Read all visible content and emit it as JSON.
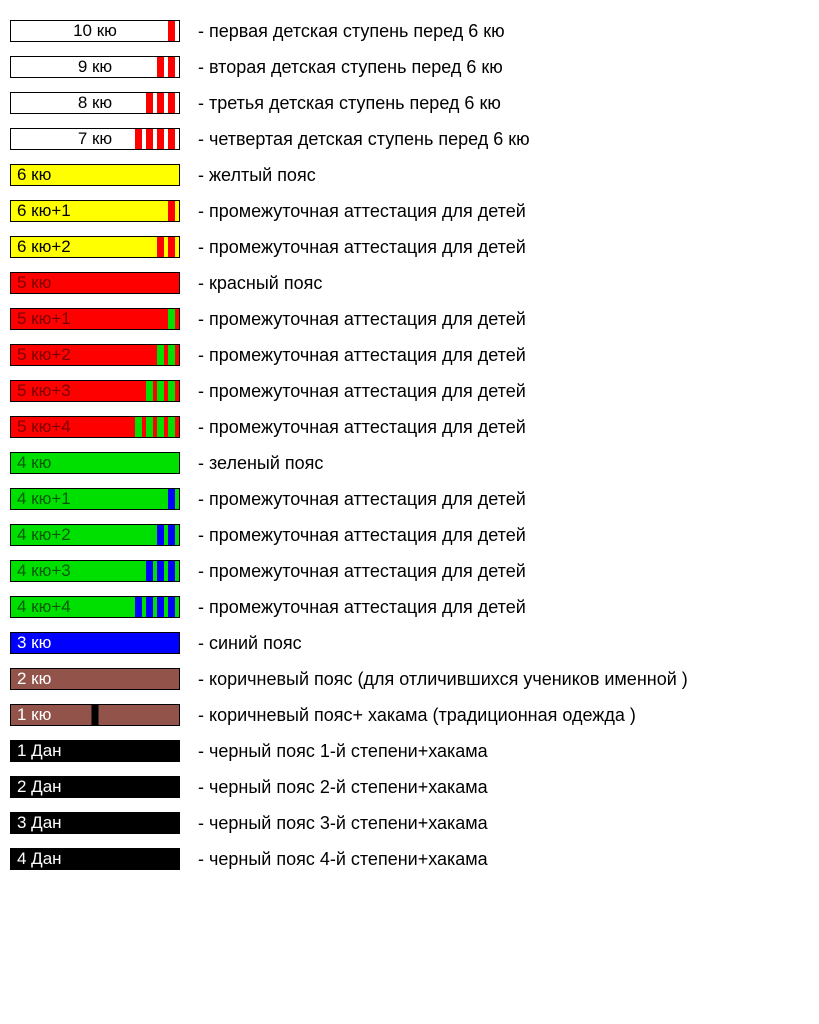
{
  "colors": {
    "white": "#ffffff",
    "yellow": "#ffff00",
    "red": "#ff0000",
    "green": "#00e000",
    "blue": "#0000ff",
    "brown": "#92544a",
    "black": "#000000",
    "darkred_text": "#7a0000",
    "darkgreen_text": "#045a04",
    "white_text": "#ffffff",
    "black_text": "#000000"
  },
  "belt_width": 170,
  "belt_height": 22,
  "stripe_width": 7,
  "stripe_gap": 4,
  "font_size_label": 17,
  "font_size_desc": 18,
  "ranks": [
    {
      "label": "10 кю",
      "bg": "#ffffff",
      "text_color": "#000000",
      "label_align": "center",
      "stripes": 1,
      "stripe_color": "#ff0000",
      "desc": "- первая детская ступень перед 6 кю"
    },
    {
      "label": "9 кю",
      "bg": "#ffffff",
      "text_color": "#000000",
      "label_align": "center",
      "stripes": 2,
      "stripe_color": "#ff0000",
      "desc": "- вторая детская ступень перед 6 кю"
    },
    {
      "label": "8 кю",
      "bg": "#ffffff",
      "text_color": "#000000",
      "label_align": "center",
      "stripes": 3,
      "stripe_color": "#ff0000",
      "desc": "- третья детская ступень перед 6 кю"
    },
    {
      "label": "7 кю",
      "bg": "#ffffff",
      "text_color": "#000000",
      "label_align": "center",
      "stripes": 4,
      "stripe_color": "#ff0000",
      "desc": "- четвертая детская ступень перед 6 кю"
    },
    {
      "label": "6 кю",
      "bg": "#ffff00",
      "text_color": "#000000",
      "label_align": "left",
      "stripes": 0,
      "stripe_color": "#ff0000",
      "desc": "- желтый пояс"
    },
    {
      "label": "6 кю+1",
      "bg": "#ffff00",
      "text_color": "#000000",
      "label_align": "left",
      "stripes": 1,
      "stripe_color": "#ff0000",
      "desc": "- промежуточная аттестация для детей"
    },
    {
      "label": "6 кю+2",
      "bg": "#ffff00",
      "text_color": "#000000",
      "label_align": "left",
      "stripes": 2,
      "stripe_color": "#ff0000",
      "desc": "- промежуточная аттестация для детей"
    },
    {
      "label": "5 кю",
      "bg": "#ff0000",
      "text_color": "#7a0000",
      "label_align": "left",
      "stripes": 0,
      "stripe_color": "#00e000",
      "desc": "- красный пояс"
    },
    {
      "label": "5 кю+1",
      "bg": "#ff0000",
      "text_color": "#7a0000",
      "label_align": "left",
      "stripes": 1,
      "stripe_color": "#00e000",
      "desc": "- промежуточная аттестация для детей"
    },
    {
      "label": "5 кю+2",
      "bg": "#ff0000",
      "text_color": "#7a0000",
      "label_align": "left",
      "stripes": 2,
      "stripe_color": "#00e000",
      "desc": "- промежуточная аттестация для детей"
    },
    {
      "label": "5 кю+3",
      "bg": "#ff0000",
      "text_color": "#7a0000",
      "label_align": "left",
      "stripes": 3,
      "stripe_color": "#00e000",
      "desc": "- промежуточная аттестация для детей"
    },
    {
      "label": "5 кю+4",
      "bg": "#ff0000",
      "text_color": "#7a0000",
      "label_align": "left",
      "stripes": 4,
      "stripe_color": "#00e000",
      "desc": "- промежуточная аттестация для детей"
    },
    {
      "label": "4 кю",
      "bg": "#00e000",
      "text_color": "#045a04",
      "label_align": "left",
      "stripes": 0,
      "stripe_color": "#0000ff",
      "desc": "- зеленый пояс"
    },
    {
      "label": "4 кю+1",
      "bg": "#00e000",
      "text_color": "#045a04",
      "label_align": "left",
      "stripes": 1,
      "stripe_color": "#0000ff",
      "desc": "- промежуточная аттестация для детей"
    },
    {
      "label": "4 кю+2",
      "bg": "#00e000",
      "text_color": "#045a04",
      "label_align": "left",
      "stripes": 2,
      "stripe_color": "#0000ff",
      "desc": "- промежуточная аттестация для детей"
    },
    {
      "label": "4 кю+3",
      "bg": "#00e000",
      "text_color": "#045a04",
      "label_align": "left",
      "stripes": 3,
      "stripe_color": "#0000ff",
      "desc": "- промежуточная аттестация для детей"
    },
    {
      "label": "4 кю+4",
      "bg": "#00e000",
      "text_color": "#045a04",
      "label_align": "left",
      "stripes": 4,
      "stripe_color": "#0000ff",
      "desc": "- промежуточная аттестация для детей"
    },
    {
      "label": "3 кю",
      "bg": "#0000ff",
      "text_color": "#ffffff",
      "label_align": "left",
      "stripes": 0,
      "stripe_color": "#000000",
      "desc": "- синий пояс"
    },
    {
      "label": "2 кю",
      "bg": "#92544a",
      "text_color": "#ffffff",
      "label_align": "left",
      "stripes": 0,
      "stripe_color": "#000000",
      "desc": "- коричневый пояс (для отличившихся учеников именной )"
    },
    {
      "label": "1 кю",
      "bg": "#92544a",
      "text_color": "#ffffff",
      "label_align": "left",
      "stripes": 1,
      "stripe_color": "#000000",
      "stripe_pos": "center",
      "desc": "- коричневый пояс+ хакама (традиционная одежда )"
    },
    {
      "label": "1 Дан",
      "bg": "#000000",
      "text_color": "#ffffff",
      "label_align": "left",
      "stripes": 0,
      "stripe_color": "#000000",
      "desc": "- черный пояс 1-й степени+хакама"
    },
    {
      "label": "2 Дан",
      "bg": "#000000",
      "text_color": "#ffffff",
      "label_align": "left",
      "stripes": 0,
      "stripe_color": "#000000",
      "desc": "- черный пояс 2-й степени+хакама"
    },
    {
      "label": "3 Дан",
      "bg": "#000000",
      "text_color": "#ffffff",
      "label_align": "left",
      "stripes": 0,
      "stripe_color": "#000000",
      "desc": "- черный пояс 3-й степени+хакама"
    },
    {
      "label": "4 Дан",
      "bg": "#000000",
      "text_color": "#ffffff",
      "label_align": "left",
      "stripes": 0,
      "stripe_color": "#000000",
      "desc": "- черный пояс 4-й степени+хакама"
    }
  ]
}
